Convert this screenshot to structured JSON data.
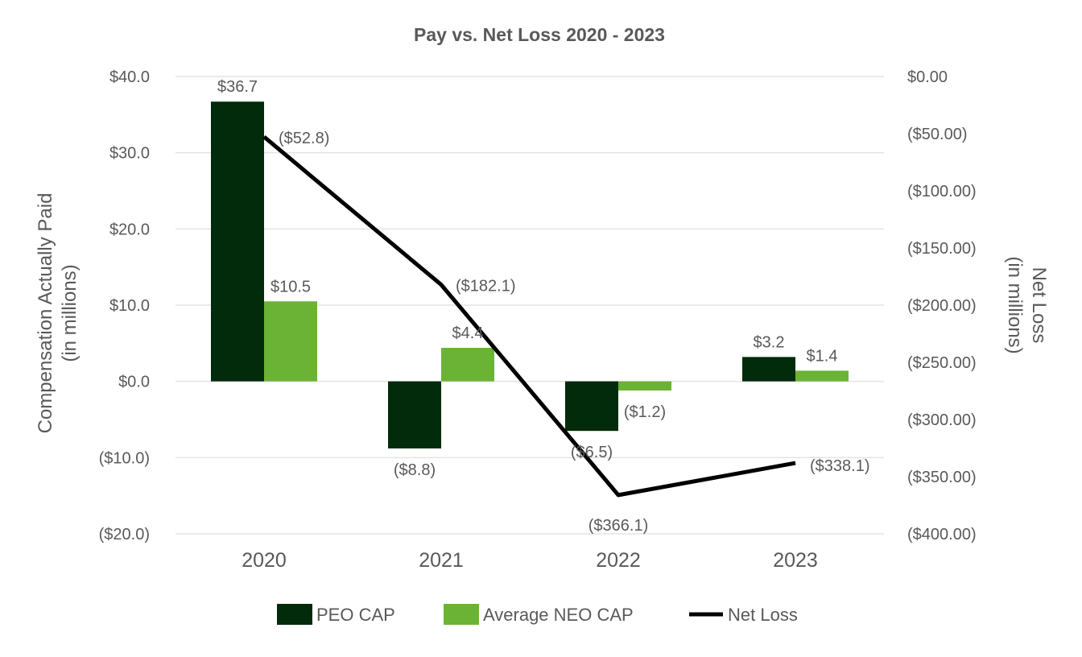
{
  "chart_data": {
    "type": "bar",
    "title": "Pay vs. Net Loss 2020 - 2023",
    "categories": [
      "2020",
      "2021",
      "2022",
      "2023"
    ],
    "ylabel": [
      "Compensation Actually Paid",
      "(in millions)"
    ],
    "y2label": [
      "Net Loss",
      "(in millions)"
    ],
    "ylim": [
      -20,
      40
    ],
    "y2lim": [
      -400,
      0
    ],
    "yticks": [
      40,
      30,
      20,
      10,
      0,
      -10,
      -20
    ],
    "ytick_labels": [
      "$40.0",
      "$30.0",
      "$20.0",
      "$10.0",
      "$0.0",
      "($10.0)",
      "($20.0)"
    ],
    "y2ticks": [
      0,
      -50,
      -100,
      -150,
      -200,
      -250,
      -300,
      -350,
      -400
    ],
    "y2tick_labels": [
      "$0.00",
      "($50.00)",
      "($100.00)",
      "($150.00)",
      "($200.00)",
      "($250.00)",
      "($300.00)",
      "($350.00)",
      "($400.00)"
    ],
    "grid": true,
    "legend_position": "bottom",
    "series": [
      {
        "name": "PEO CAP",
        "kind": "bar",
        "axis": "left",
        "color": "#012B0A",
        "values": [
          36.7,
          -8.8,
          -6.5,
          3.2
        ],
        "labels": [
          "$36.7",
          "($8.8)",
          "($6.5)",
          "$3.2"
        ]
      },
      {
        "name": "Average NEO CAP",
        "kind": "bar",
        "axis": "left",
        "color": "#6BB335",
        "values": [
          10.5,
          4.4,
          -1.2,
          1.4
        ],
        "labels": [
          "$10.5",
          "$4.4",
          "($1.2)",
          "$1.4"
        ]
      },
      {
        "name": "Net Loss",
        "kind": "line",
        "axis": "right",
        "color": "#000000",
        "values": [
          -52.8,
          -182.1,
          -366.1,
          -338.1
        ],
        "labels": [
          "($52.8)",
          "($182.1)",
          "($366.1)",
          "($338.1)"
        ]
      }
    ]
  }
}
